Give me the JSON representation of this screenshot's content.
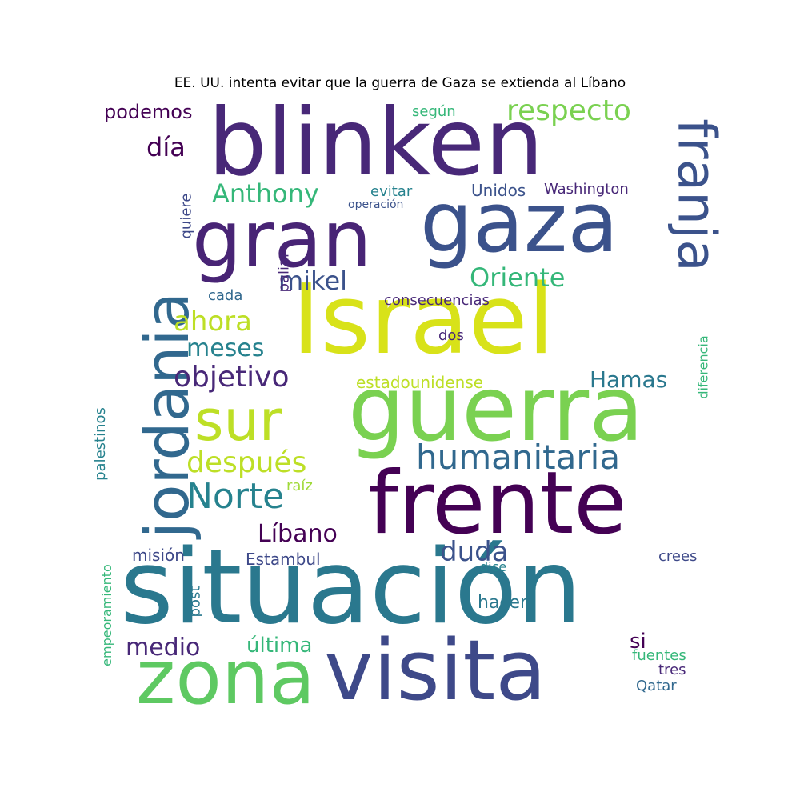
{
  "title": "EE. UU. intenta evitar que la guerra de Gaza se extienda al Líbano",
  "words": [
    {
      "text": "situación",
      "color": "#2a788e",
      "weight": 1.0
    },
    {
      "text": "Israel",
      "color": "#d8e219",
      "weight": 0.97
    },
    {
      "text": "blinken",
      "color": "#482878",
      "weight": 0.92
    },
    {
      "text": "guerra",
      "color": "#7ad151",
      "weight": 0.9
    },
    {
      "text": "frente",
      "color": "#440154",
      "weight": 0.88
    },
    {
      "text": "visita",
      "color": "#3e4989",
      "weight": 0.86
    },
    {
      "text": "gaza",
      "color": "#3b528b",
      "weight": 0.84
    },
    {
      "text": "gran",
      "color": "#482475",
      "weight": 0.82
    },
    {
      "text": "zona",
      "color": "#5ec962",
      "weight": 0.8
    },
    {
      "text": "jordania",
      "color": "#31688e",
      "weight": 0.68
    },
    {
      "text": "sur",
      "color": "#bddf26",
      "weight": 0.62
    },
    {
      "text": "franja",
      "color": "#3b528b",
      "weight": 0.6
    },
    {
      "text": "humanitaria",
      "color": "#31688e",
      "weight": 0.5
    },
    {
      "text": "Norte",
      "color": "#26828e",
      "weight": 0.48
    },
    {
      "text": "respecto",
      "color": "#7ad151",
      "weight": 0.42
    },
    {
      "text": "objetivo",
      "color": "#482878",
      "weight": 0.4
    },
    {
      "text": "después",
      "color": "#bddf26",
      "weight": 0.4
    },
    {
      "text": "Anthony",
      "color": "#35b779",
      "weight": 0.37
    },
    {
      "text": "duda",
      "color": "#3b528b",
      "weight": 0.37
    },
    {
      "text": "Oriente",
      "color": "#35b779",
      "weight": 0.35
    },
    {
      "text": "mikel",
      "color": "#3b528b",
      "weight": 0.34
    },
    {
      "text": "Líbano",
      "color": "#440154",
      "weight": 0.34
    },
    {
      "text": "ahora",
      "color": "#bddf26",
      "weight": 0.34
    },
    {
      "text": "medio",
      "color": "#482878",
      "weight": 0.32
    },
    {
      "text": "meses",
      "color": "#26828e",
      "weight": 0.32
    },
    {
      "text": "día",
      "color": "#440154",
      "weight": 0.32
    },
    {
      "text": "Hamas",
      "color": "#2a788e",
      "weight": 0.29
    },
    {
      "text": "última",
      "color": "#35b779",
      "weight": 0.28
    },
    {
      "text": "podemos",
      "color": "#440154",
      "weight": 0.26
    },
    {
      "text": "hacer",
      "color": "#2a788e",
      "weight": 0.25
    },
    {
      "text": "si",
      "color": "#440154",
      "weight": 0.25
    },
    {
      "text": "Estambul",
      "color": "#3e4989",
      "weight": 0.22
    },
    {
      "text": "Unidos",
      "color": "#3b528b",
      "weight": 0.22
    },
    {
      "text": "misión",
      "color": "#3e4989",
      "weight": 0.22
    },
    {
      "text": "estadounidense",
      "color": "#bddf26",
      "weight": 0.21
    },
    {
      "text": "Washington",
      "color": "#482878",
      "weight": 0.2
    },
    {
      "text": "evitar",
      "color": "#26828e",
      "weight": 0.2
    },
    {
      "text": "según",
      "color": "#35b779",
      "weight": 0.2
    },
    {
      "text": "consecuencias",
      "color": "#482878",
      "weight": 0.2
    },
    {
      "text": "quiere",
      "color": "#3e4989",
      "weight": 0.19
    },
    {
      "text": "fuentes",
      "color": "#35b779",
      "weight": 0.2
    },
    {
      "text": "Qatar",
      "color": "#31688e",
      "weight": 0.19
    },
    {
      "text": "tres",
      "color": "#482878",
      "weight": 0.19
    },
    {
      "text": "cada",
      "color": "#31688e",
      "weight": 0.2
    },
    {
      "text": "dos",
      "color": "#482878",
      "weight": 0.19
    },
    {
      "text": "post",
      "color": "#2a788e",
      "weight": 0.19
    },
    {
      "text": "paliar",
      "color": "#482878",
      "weight": 0.19
    },
    {
      "text": "crees",
      "color": "#3e4989",
      "weight": 0.19
    },
    {
      "text": "dice",
      "color": "#26828e",
      "weight": 0.18
    },
    {
      "text": "raíz",
      "color": "#a0da39",
      "weight": 0.18
    },
    {
      "text": "palestinos",
      "color": "#26828e",
      "weight": 0.19
    },
    {
      "text": "diferencia",
      "color": "#35b779",
      "weight": 0.17
    },
    {
      "text": "empeoramiento",
      "color": "#35b779",
      "weight": 0.17
    },
    {
      "text": "operación",
      "color": "#3b528b",
      "weight": 0.15
    }
  ]
}
